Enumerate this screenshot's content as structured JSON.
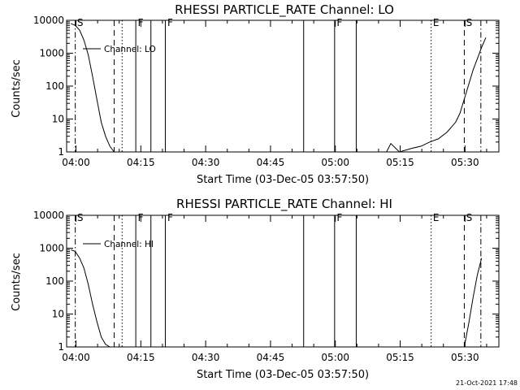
{
  "footer_timestamp": "21-Oct-2021 17:48",
  "chart_data": [
    {
      "type": "line",
      "title": "RHESSI PARTICLE_RATE Channel: LO",
      "xlabel": "Start Time (03-Dec-05 03:57:50)",
      "ylabel": "Counts/sec",
      "yscale": "log",
      "ylim": [
        1,
        10000
      ],
      "xlim_minutes": [
        0,
        100
      ],
      "x_tick_labels": [
        "04:00",
        "04:15",
        "04:30",
        "04:45",
        "05:00",
        "05:15",
        "05:30"
      ],
      "y_tick_labels": [
        "1",
        "10",
        "100",
        "1000",
        "10000"
      ],
      "legend": "top-left",
      "grid": false,
      "series": [
        {
          "name": "Channel: LO",
          "x": [
            "03:58:50",
            "03:59:50",
            "04:00:50",
            "04:01:50",
            "04:02:50",
            "04:03:50",
            "04:04:50",
            "04:05:50",
            "04:06:50",
            "04:07:50",
            "04:08:50"
          ],
          "y": [
            8000,
            7000,
            5000,
            2500,
            900,
            200,
            40,
            8,
            3,
            1.5,
            1
          ]
        },
        {
          "name": "Channel: LO",
          "x": [
            "05:11:50",
            "05:12:50",
            "05:14:50",
            "05:17:50",
            "05:19:50",
            "05:21:50",
            "05:23:50",
            "05:25:50",
            "05:27:50",
            "05:28:50",
            "05:29:50",
            "05:31:50",
            "05:33:50",
            "05:34:50"
          ],
          "y": [
            1,
            1.8,
            1,
            1.3,
            1.5,
            2,
            2.5,
            4,
            8,
            15,
            40,
            300,
            1500,
            3000
          ]
        }
      ],
      "markers": [
        {
          "label": "S",
          "time": "03:59:50",
          "style": "dash-dot"
        },
        {
          "label": "",
          "time": "04:08:50",
          "style": "dashed"
        },
        {
          "label": "",
          "time": "04:10:40",
          "style": "dotted"
        },
        {
          "label": "F",
          "time": "04:13:50",
          "style": "solid"
        },
        {
          "label": "",
          "time": "04:17:20",
          "style": "solid"
        },
        {
          "label": "F",
          "time": "04:20:40",
          "style": "solid"
        },
        {
          "label": "",
          "time": "04:52:40",
          "style": "solid"
        },
        {
          "label": "F",
          "time": "04:59:50",
          "style": "solid"
        },
        {
          "label": "",
          "time": "05:04:50",
          "style": "solid"
        },
        {
          "label": "E",
          "time": "05:22:10",
          "style": "dotted"
        },
        {
          "label": "S",
          "time": "05:29:50",
          "style": "dashed"
        },
        {
          "label": "",
          "time": "05:33:40",
          "style": "dash-dot"
        }
      ]
    },
    {
      "type": "line",
      "title": "RHESSI PARTICLE_RATE Channel: HI",
      "xlabel": "Start Time (03-Dec-05 03:57:50)",
      "ylabel": "Counts/sec",
      "yscale": "log",
      "ylim": [
        1,
        10000
      ],
      "xlim_minutes": [
        0,
        100
      ],
      "x_tick_labels": [
        "04:00",
        "04:15",
        "04:30",
        "04:45",
        "05:00",
        "05:15",
        "05:30"
      ],
      "y_tick_labels": [
        "1",
        "10",
        "100",
        "1000",
        "10000"
      ],
      "legend": "top-left",
      "grid": false,
      "series": [
        {
          "name": "Channel: HI",
          "x": [
            "03:58:50",
            "03:59:50",
            "04:00:50",
            "04:01:50",
            "04:02:50",
            "04:03:50",
            "04:04:50",
            "04:05:50",
            "04:06:50",
            "04:07:50"
          ],
          "y": [
            900,
            800,
            500,
            250,
            80,
            20,
            6,
            2,
            1.2,
            1
          ]
        },
        {
          "name": "Channel: HI",
          "x": [
            "05:29:50",
            "05:30:50",
            "05:31:50",
            "05:32:50",
            "05:33:50"
          ],
          "y": [
            1,
            5,
            30,
            150,
            500
          ]
        }
      ],
      "markers": [
        {
          "label": "S",
          "time": "03:59:50",
          "style": "dash-dot"
        },
        {
          "label": "",
          "time": "04:08:50",
          "style": "dashed"
        },
        {
          "label": "",
          "time": "04:10:40",
          "style": "dotted"
        },
        {
          "label": "F",
          "time": "04:13:50",
          "style": "solid"
        },
        {
          "label": "",
          "time": "04:17:20",
          "style": "solid"
        },
        {
          "label": "F",
          "time": "04:20:40",
          "style": "solid"
        },
        {
          "label": "",
          "time": "04:52:40",
          "style": "solid"
        },
        {
          "label": "F",
          "time": "04:59:50",
          "style": "solid"
        },
        {
          "label": "",
          "time": "05:04:50",
          "style": "solid"
        },
        {
          "label": "E",
          "time": "05:22:10",
          "style": "dotted"
        },
        {
          "label": "S",
          "time": "05:29:50",
          "style": "dashed"
        },
        {
          "label": "",
          "time": "05:33:40",
          "style": "dash-dot"
        }
      ]
    }
  ]
}
